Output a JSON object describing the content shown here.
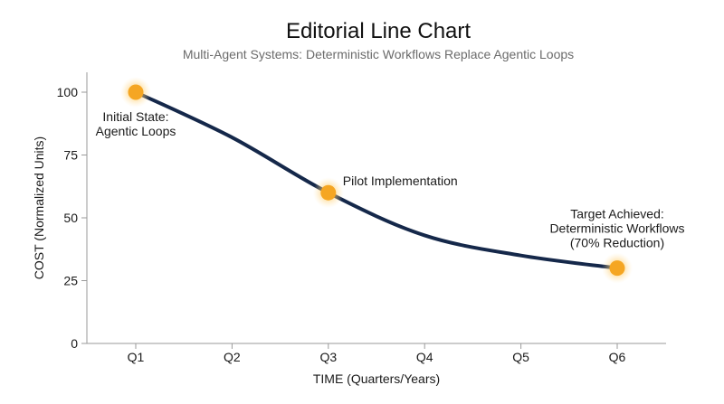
{
  "chart_data": {
    "type": "line",
    "title": "Editorial Line Chart",
    "subtitle": "Multi-Agent Systems: Deterministic Workflows Replace Agentic Loops",
    "xlabel": "TIME (Quarters/Years)",
    "ylabel": "COST (Normalized Units)",
    "categories": [
      "Q1",
      "Q2",
      "Q3",
      "Q4",
      "Q5",
      "Q6"
    ],
    "yticks": [
      0,
      25,
      50,
      75,
      100
    ],
    "ylim": [
      0,
      100
    ],
    "grid": false,
    "legend": "none",
    "series": [
      {
        "values": [
          100,
          82,
          60,
          43,
          35,
          30
        ]
      }
    ],
    "highlights": [
      {
        "category": "Q1",
        "value": 100,
        "lines": [
          "Initial State:",
          "Agentic Loops"
        ]
      },
      {
        "category": "Q3",
        "value": 60,
        "lines": [
          "Pilot Implementation"
        ]
      },
      {
        "category": "Q6",
        "value": 30,
        "lines": [
          "Target Achieved:",
          "Deterministic Workflows",
          "(70% Reduction)"
        ]
      }
    ],
    "colors": {
      "line": "#15284a",
      "marker": "#f5a623",
      "marker_glow": "#ffd27a",
      "axis": "#9a9a9a"
    }
  }
}
